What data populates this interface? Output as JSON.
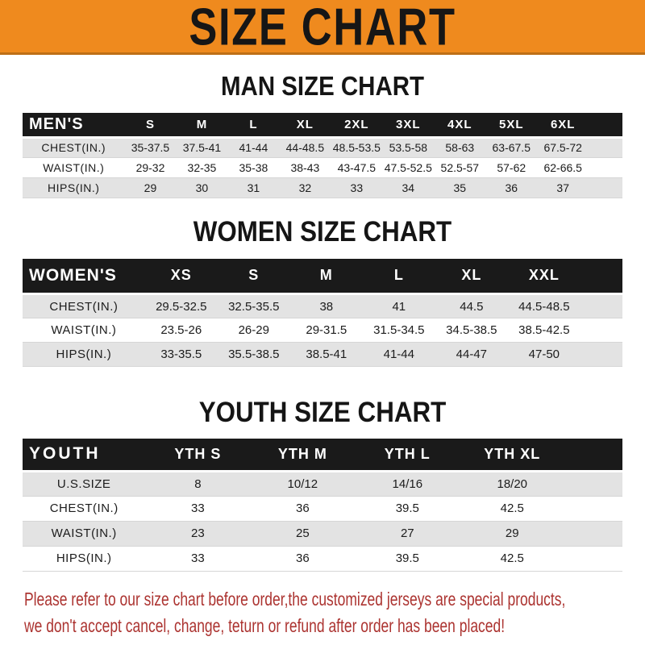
{
  "banner": {
    "title": "SIZE CHART"
  },
  "chart_data": [
    {
      "type": "table",
      "title": "MAN SIZE CHART",
      "corner_label": "MEN'S",
      "columns": [
        "S",
        "M",
        "L",
        "XL",
        "2XL",
        "3XL",
        "4XL",
        "5XL",
        "6XL"
      ],
      "rows": [
        {
          "label": "CHEST(IN.)",
          "values": [
            "35-37.5",
            "37.5-41",
            "41-44",
            "44-48.5",
            "48.5-53.5",
            "53.5-58",
            "58-63",
            "63-67.5",
            "67.5-72"
          ]
        },
        {
          "label": "WAIST(IN.)",
          "values": [
            "29-32",
            "32-35",
            "35-38",
            "38-43",
            "43-47.5",
            "47.5-52.5",
            "52.5-57",
            "57-62",
            "62-66.5"
          ]
        },
        {
          "label": "HIPS(IN.)",
          "values": [
            "29",
            "30",
            "31",
            "32",
            "33",
            "34",
            "35",
            "36",
            "37"
          ]
        }
      ]
    },
    {
      "type": "table",
      "title": "WOMEN SIZE CHART",
      "corner_label": "WOMEN'S",
      "columns": [
        "XS",
        "S",
        "M",
        "L",
        "XL",
        "XXL"
      ],
      "rows": [
        {
          "label": "CHEST(IN.)",
          "values": [
            "29.5-32.5",
            "32.5-35.5",
            "38",
            "41",
            "44.5",
            "44.5-48.5"
          ]
        },
        {
          "label": "WAIST(IN.)",
          "values": [
            "23.5-26",
            "26-29",
            "29-31.5",
            "31.5-34.5",
            "34.5-38.5",
            "38.5-42.5"
          ]
        },
        {
          "label": "HIPS(IN.)",
          "values": [
            "33-35.5",
            "35.5-38.5",
            "38.5-41",
            "41-44",
            "44-47",
            "47-50"
          ]
        }
      ]
    },
    {
      "type": "table",
      "title": "YOUTH SIZE CHART",
      "corner_label": "YOUTH",
      "columns": [
        "YTH S",
        "YTH M",
        "YTH L",
        "YTH XL"
      ],
      "rows": [
        {
          "label": "U.S.SIZE",
          "values": [
            "8",
            "10/12",
            "14/16",
            "18/20"
          ]
        },
        {
          "label": "CHEST(IN.)",
          "values": [
            "33",
            "36",
            "39.5",
            "42.5"
          ]
        },
        {
          "label": "WAIST(IN.)",
          "values": [
            "23",
            "25",
            "27",
            "29"
          ]
        },
        {
          "label": "HIPS(IN.)",
          "values": [
            "33",
            "36",
            "39.5",
            "42.5"
          ]
        }
      ]
    }
  ],
  "footer": {
    "lines": [
      "Please refer to our size chart before order,the customized jerseys are special products,",
      "we don't accept cancel, change, teturn or refund after order has been placed!"
    ]
  },
  "colors": {
    "banner_bg": "#EF8A1E",
    "banner_border": "#BE6F16",
    "banner_text": "#161616",
    "bar_bg": "#1A1A1A",
    "bar_text": "#FFFFFF",
    "row_alt_bg": "#E3E3E3",
    "value_text": "#1C1C1C",
    "notice_text": "#AC3431"
  }
}
